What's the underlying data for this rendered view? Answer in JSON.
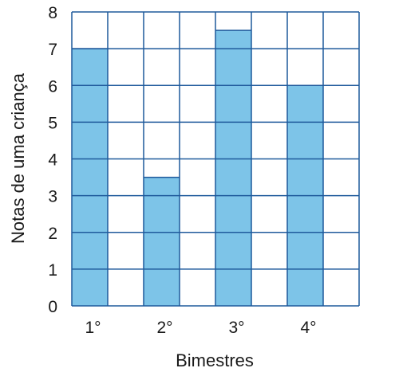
{
  "chart_data": {
    "type": "bar",
    "title": "",
    "xlabel": "Bimestres",
    "ylabel": "Notas de uma criança",
    "categories": [
      "1°",
      "2°",
      "3°",
      "4°"
    ],
    "values": [
      7,
      3.5,
      7.5,
      6
    ],
    "ylim": [
      0,
      8
    ],
    "yticks": [
      0,
      1,
      2,
      3,
      4,
      5,
      6,
      7,
      8
    ],
    "grid": true,
    "colors": {
      "bar": "#7dc4e8",
      "grid": "#1f5a9c"
    }
  }
}
